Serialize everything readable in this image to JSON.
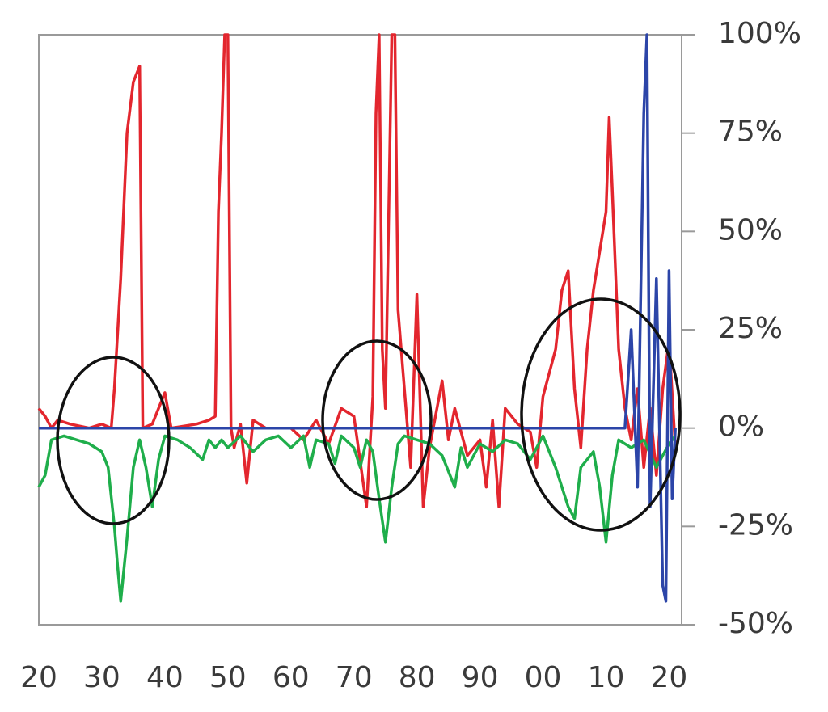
{
  "chart_data": {
    "type": "line",
    "xlim": [
      20,
      122
    ],
    "xticks": [
      20,
      30,
      40,
      50,
      60,
      70,
      80,
      90,
      {
        "value": 100,
        "label": "00"
      },
      {
        "value": 110,
        "label": "10"
      },
      {
        "value": 120,
        "label": "20"
      }
    ],
    "ylim": [
      -50,
      100
    ],
    "yticks": [
      {
        "value": -50,
        "label": "-50%"
      },
      {
        "value": -25,
        "label": "-25%"
      },
      {
        "value": 0,
        "label": "0%"
      },
      {
        "value": 25,
        "label": "25%"
      },
      {
        "value": 50,
        "label": "50%"
      },
      {
        "value": 75,
        "label": "75%"
      },
      {
        "value": 100,
        "label": "100%"
      }
    ],
    "series": [
      {
        "color": "#e3262e",
        "x": [
          20,
          21,
          22,
          23,
          25,
          28,
          30,
          31.5,
          32,
          33,
          34,
          35,
          36,
          36.5,
          38,
          39,
          40,
          41,
          45,
          47,
          48,
          48.5,
          49,
          49.5,
          50,
          50.5,
          51,
          52,
          53,
          54,
          56,
          60,
          62,
          64,
          66,
          68,
          70,
          72,
          73,
          73.5,
          74,
          74.5,
          75,
          76,
          76.5,
          77,
          78,
          79,
          80,
          81,
          82,
          84,
          85,
          86,
          88,
          90,
          91,
          92,
          93,
          94,
          96,
          98,
          99,
          100,
          102,
          103,
          104,
          105,
          106,
          107,
          108,
          109,
          110,
          110.5,
          111,
          112,
          113,
          114,
          115,
          116,
          117,
          118,
          119,
          120,
          121
        ],
        "values": [
          5,
          3,
          0,
          2,
          1,
          0,
          1,
          0,
          10,
          38,
          75,
          88,
          92,
          0,
          1,
          5,
          9,
          0,
          1,
          2,
          3,
          55,
          75,
          100,
          100,
          0,
          -5,
          1,
          -14,
          2,
          0,
          0,
          -3,
          2,
          -4,
          5,
          3,
          -20,
          8,
          80,
          100,
          20,
          5,
          100,
          100,
          30,
          10,
          -10,
          34,
          -20,
          -5,
          12,
          -3,
          5,
          -7,
          -3,
          -15,
          2,
          -20,
          5,
          1,
          -1,
          -10,
          8,
          20,
          35,
          40,
          10,
          -5,
          20,
          35,
          45,
          55,
          79,
          60,
          20,
          5,
          -3,
          10,
          -10,
          5,
          -12,
          10,
          22,
          -5
        ]
      },
      {
        "color": "#1fae4b",
        "x": [
          20,
          21,
          22,
          24,
          26,
          28,
          30,
          31,
          32,
          32.5,
          33,
          34,
          35,
          36,
          37,
          38,
          39,
          40,
          42,
          44,
          46,
          47,
          48,
          49,
          50,
          52,
          54,
          56,
          58,
          60,
          62,
          63,
          64,
          66,
          67,
          68,
          70,
          71,
          72,
          73,
          74,
          75,
          76,
          77,
          78,
          80,
          82,
          84,
          86,
          87,
          88,
          90,
          92,
          94,
          96,
          98,
          100,
          102,
          104,
          105,
          106,
          108,
          109,
          110,
          111,
          112,
          114,
          116,
          118,
          120,
          121
        ],
        "values": [
          -15,
          -12,
          -3,
          -2,
          -3,
          -4,
          -6,
          -10,
          -25,
          -35,
          -44,
          -28,
          -10,
          -3,
          -10,
          -20,
          -8,
          -2,
          -3,
          -5,
          -8,
          -3,
          -5,
          -3,
          -5,
          -2,
          -6,
          -3,
          -2,
          -5,
          -2,
          -10,
          -3,
          -4,
          -9,
          -2,
          -5,
          -10,
          -3,
          -6,
          -18,
          -29,
          -15,
          -4,
          -2,
          -3,
          -4,
          -7,
          -15,
          -5,
          -10,
          -4,
          -6,
          -3,
          -4,
          -8,
          -2,
          -10,
          -20,
          -23,
          -10,
          -6,
          -15,
          -29,
          -12,
          -3,
          -5,
          -3,
          -10,
          -4,
          -2
        ]
      },
      {
        "color": "#2c45a8",
        "x": [
          20,
          113,
          114,
          115,
          116,
          116.5,
          117,
          118,
          119,
          119.5,
          120,
          120.5,
          121
        ],
        "values": [
          0,
          0,
          25,
          -15,
          80,
          100,
          -20,
          38,
          -40,
          -44,
          40,
          -18,
          0
        ]
      }
    ]
  }
}
